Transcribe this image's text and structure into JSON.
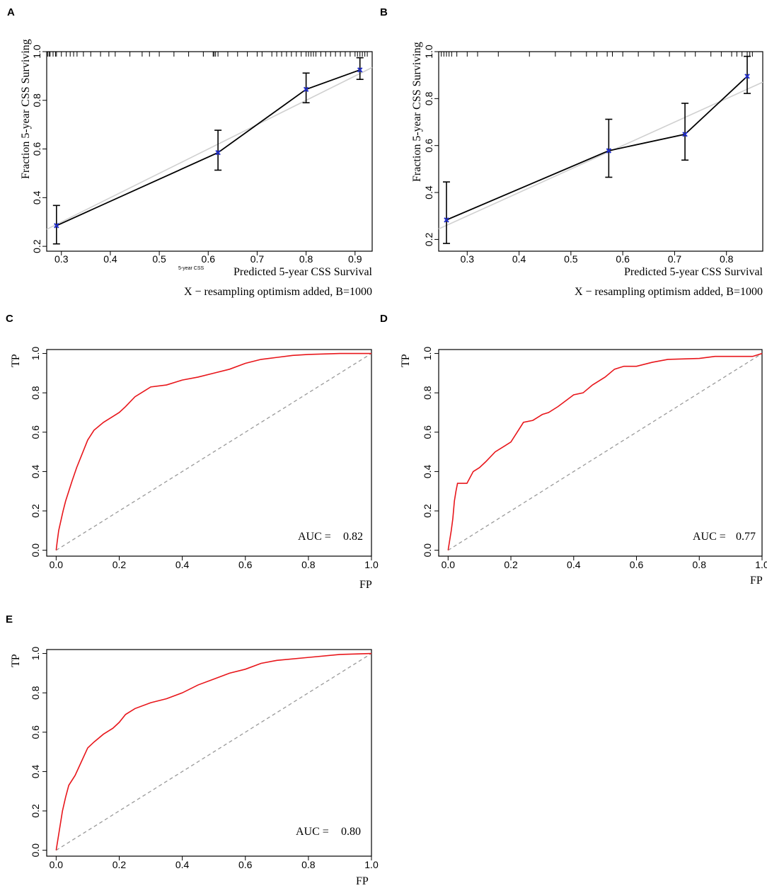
{
  "colors": {
    "observed_line": "#000000",
    "ideal_line": "#d0d0d0",
    "point": "#1f2ccc",
    "roc_curve": "#e8161b",
    "diagonal": "#9a9a9a",
    "axis": "#000000"
  },
  "chart_data": [
    {
      "panel": "A",
      "type": "line",
      "kind": "calibration",
      "ylabel": "Fraction 5-year CSS Surviving",
      "xlabel": "Predicted  5-year CSS Survival",
      "subtitle": "X − resampling optimism added, B=1000",
      "extra_label": "5-year CSS",
      "xlim": [
        0.27,
        0.935
      ],
      "ylim": [
        0.18,
        1.0
      ],
      "xticks": [
        0.3,
        0.4,
        0.5,
        0.6,
        0.7,
        0.8,
        0.9
      ],
      "xtick_labels": [
        "0.3",
        "0.4",
        "0.5",
        "0.6",
        "0.7",
        "0.8",
        "0.9"
      ],
      "yticks": [
        0.2,
        0.4,
        0.6,
        0.8,
        1.0
      ],
      "ytick_labels": [
        "0.2",
        "0.4",
        "0.6",
        "0.8",
        "1.0"
      ],
      "rug_x": [
        0.272,
        0.275,
        0.277,
        0.283,
        0.288,
        0.29,
        0.3,
        0.31,
        0.318,
        0.325,
        0.332,
        0.345,
        0.36,
        0.38,
        0.397,
        0.41,
        0.44,
        0.465,
        0.48,
        0.5,
        0.53,
        0.56,
        0.59,
        0.61,
        0.612,
        0.615,
        0.62,
        0.64,
        0.66,
        0.68,
        0.7,
        0.71,
        0.73,
        0.74,
        0.75,
        0.76,
        0.77,
        0.78,
        0.79,
        0.8,
        0.805,
        0.81,
        0.815,
        0.82,
        0.83,
        0.84,
        0.85,
        0.86,
        0.87,
        0.88,
        0.89,
        0.9,
        0.905,
        0.91,
        0.915,
        0.92,
        0.925
      ],
      "points": [
        {
          "x": 0.29,
          "y": 0.285,
          "lo": 0.21,
          "hi": 0.368
        },
        {
          "x": 0.62,
          "y": 0.585,
          "lo": 0.513,
          "hi": 0.677
        },
        {
          "x": 0.8,
          "y": 0.845,
          "lo": 0.79,
          "hi": 0.912
        },
        {
          "x": 0.91,
          "y": 0.925,
          "lo": 0.886,
          "hi": 0.975
        }
      ],
      "ideal": [
        [
          0.27,
          0.27
        ],
        [
          0.935,
          0.935
        ]
      ]
    },
    {
      "panel": "B",
      "type": "line",
      "kind": "calibration",
      "ylabel": "Fraction 5-year CSS Surviving",
      "xlabel": "Predicted  5-year CSS Survival",
      "subtitle": "X − resampling optimism added, B=1000",
      "xlim": [
        0.245,
        0.87
      ],
      "ylim": [
        0.15,
        1.0
      ],
      "xticks": [
        0.3,
        0.4,
        0.5,
        0.6,
        0.7,
        0.8
      ],
      "xtick_labels": [
        "0.3",
        "0.4",
        "0.5",
        "0.6",
        "0.7",
        "0.8"
      ],
      "yticks": [
        0.2,
        0.4,
        0.6,
        0.8,
        1.0
      ],
      "ytick_labels": [
        "0.2",
        "0.4",
        "0.6",
        "0.8",
        "1.0"
      ],
      "rug_x": [
        0.25,
        0.255,
        0.26,
        0.265,
        0.27,
        0.28,
        0.3,
        0.32,
        0.36,
        0.42,
        0.47,
        0.5,
        0.53,
        0.55,
        0.57,
        0.58,
        0.6,
        0.63,
        0.66,
        0.69,
        0.72,
        0.74,
        0.77,
        0.79,
        0.81,
        0.82,
        0.83,
        0.84,
        0.845,
        0.85
      ],
      "points": [
        {
          "x": 0.26,
          "y": 0.283,
          "lo": 0.183,
          "hi": 0.445
        },
        {
          "x": 0.573,
          "y": 0.578,
          "lo": 0.465,
          "hi": 0.712
        },
        {
          "x": 0.72,
          "y": 0.648,
          "lo": 0.538,
          "hi": 0.78
        },
        {
          "x": 0.84,
          "y": 0.895,
          "lo": 0.822,
          "hi": 0.98
        }
      ],
      "ideal": [
        [
          0.245,
          0.245
        ],
        [
          0.87,
          0.87
        ]
      ]
    },
    {
      "panel": "C",
      "type": "line",
      "kind": "roc",
      "xlabel": "FP",
      "ylabel": "TP",
      "auc_label": "AUC = ",
      "auc": "0.82",
      "xlim": [
        -0.03,
        1.0
      ],
      "ylim": [
        -0.03,
        1.02
      ],
      "xticks": [
        0.0,
        0.2,
        0.4,
        0.6,
        0.8,
        1.0
      ],
      "xtick_labels": [
        "0.0",
        "0.2",
        "0.4",
        "0.6",
        "0.8",
        "1.0"
      ],
      "yticks": [
        0.0,
        0.2,
        0.4,
        0.6,
        0.8,
        1.0
      ],
      "ytick_labels": [
        "0.0",
        "0.2",
        "0.4",
        "0.6",
        "0.8",
        "1.0"
      ],
      "curve": [
        [
          0,
          0
        ],
        [
          0.003,
          0.04
        ],
        [
          0.008,
          0.1
        ],
        [
          0.015,
          0.15
        ],
        [
          0.022,
          0.2
        ],
        [
          0.03,
          0.25
        ],
        [
          0.04,
          0.3
        ],
        [
          0.05,
          0.35
        ],
        [
          0.065,
          0.42
        ],
        [
          0.08,
          0.48
        ],
        [
          0.1,
          0.56
        ],
        [
          0.12,
          0.61
        ],
        [
          0.15,
          0.65
        ],
        [
          0.18,
          0.68
        ],
        [
          0.2,
          0.7
        ],
        [
          0.22,
          0.73
        ],
        [
          0.25,
          0.78
        ],
        [
          0.28,
          0.81
        ],
        [
          0.3,
          0.83
        ],
        [
          0.35,
          0.84
        ],
        [
          0.4,
          0.865
        ],
        [
          0.45,
          0.88
        ],
        [
          0.5,
          0.9
        ],
        [
          0.55,
          0.92
        ],
        [
          0.6,
          0.95
        ],
        [
          0.65,
          0.97
        ],
        [
          0.7,
          0.98
        ],
        [
          0.75,
          0.99
        ],
        [
          0.8,
          0.995
        ],
        [
          0.9,
          1.0
        ],
        [
          1.0,
          1.0
        ]
      ]
    },
    {
      "panel": "D",
      "type": "line",
      "kind": "roc",
      "xlabel": "FP",
      "ylabel": "TP",
      "auc_label": "AUC = ",
      "auc": "0.77",
      "xlim": [
        -0.03,
        1.0
      ],
      "ylim": [
        -0.03,
        1.02
      ],
      "xticks": [
        0.0,
        0.2,
        0.4,
        0.6,
        0.8,
        1.0
      ],
      "xtick_labels": [
        "0.0",
        "0.2",
        "0.4",
        "0.6",
        "0.8",
        "1.0"
      ],
      "yticks": [
        0.0,
        0.2,
        0.4,
        0.6,
        0.8,
        1.0
      ],
      "ytick_labels": [
        "0.0",
        "0.2",
        "0.4",
        "0.6",
        "0.8",
        "1.0"
      ],
      "curve": [
        [
          0,
          0
        ],
        [
          0.005,
          0.05
        ],
        [
          0.01,
          0.1
        ],
        [
          0.015,
          0.16
        ],
        [
          0.02,
          0.25
        ],
        [
          0.025,
          0.3
        ],
        [
          0.03,
          0.34
        ],
        [
          0.06,
          0.34
        ],
        [
          0.08,
          0.4
        ],
        [
          0.1,
          0.42
        ],
        [
          0.12,
          0.45
        ],
        [
          0.15,
          0.5
        ],
        [
          0.18,
          0.53
        ],
        [
          0.2,
          0.55
        ],
        [
          0.22,
          0.6
        ],
        [
          0.24,
          0.65
        ],
        [
          0.27,
          0.66
        ],
        [
          0.3,
          0.69
        ],
        [
          0.32,
          0.7
        ],
        [
          0.35,
          0.73
        ],
        [
          0.4,
          0.79
        ],
        [
          0.43,
          0.8
        ],
        [
          0.46,
          0.84
        ],
        [
          0.5,
          0.88
        ],
        [
          0.53,
          0.92
        ],
        [
          0.56,
          0.935
        ],
        [
          0.6,
          0.935
        ],
        [
          0.65,
          0.955
        ],
        [
          0.7,
          0.97
        ],
        [
          0.8,
          0.975
        ],
        [
          0.85,
          0.985
        ],
        [
          0.9,
          0.985
        ],
        [
          0.97,
          0.985
        ],
        [
          1.0,
          1.0
        ]
      ]
    },
    {
      "panel": "E",
      "type": "line",
      "kind": "roc",
      "xlabel": "FP",
      "ylabel": "TP",
      "auc_label": "AUC = ",
      "auc": "0.80",
      "xlim": [
        -0.03,
        1.0
      ],
      "ylim": [
        -0.03,
        1.02
      ],
      "xticks": [
        0.0,
        0.2,
        0.4,
        0.6,
        0.8,
        1.0
      ],
      "xtick_labels": [
        "0.0",
        "0.2",
        "0.4",
        "0.6",
        "0.8",
        "1.0"
      ],
      "yticks": [
        0.0,
        0.2,
        0.4,
        0.6,
        0.8,
        1.0
      ],
      "ytick_labels": [
        "0.0",
        "0.2",
        "0.4",
        "0.6",
        "0.8",
        "1.0"
      ],
      "curve": [
        [
          0,
          0
        ],
        [
          0.005,
          0.05
        ],
        [
          0.01,
          0.1
        ],
        [
          0.015,
          0.15
        ],
        [
          0.02,
          0.2
        ],
        [
          0.03,
          0.27
        ],
        [
          0.04,
          0.33
        ],
        [
          0.06,
          0.38
        ],
        [
          0.08,
          0.45
        ],
        [
          0.1,
          0.52
        ],
        [
          0.12,
          0.55
        ],
        [
          0.15,
          0.59
        ],
        [
          0.18,
          0.62
        ],
        [
          0.2,
          0.65
        ],
        [
          0.22,
          0.69
        ],
        [
          0.25,
          0.72
        ],
        [
          0.3,
          0.75
        ],
        [
          0.35,
          0.77
        ],
        [
          0.4,
          0.8
        ],
        [
          0.45,
          0.84
        ],
        [
          0.5,
          0.87
        ],
        [
          0.55,
          0.9
        ],
        [
          0.6,
          0.92
        ],
        [
          0.65,
          0.95
        ],
        [
          0.7,
          0.965
        ],
        [
          0.8,
          0.98
        ],
        [
          0.9,
          0.995
        ],
        [
          1.0,
          1.0
        ]
      ]
    }
  ]
}
